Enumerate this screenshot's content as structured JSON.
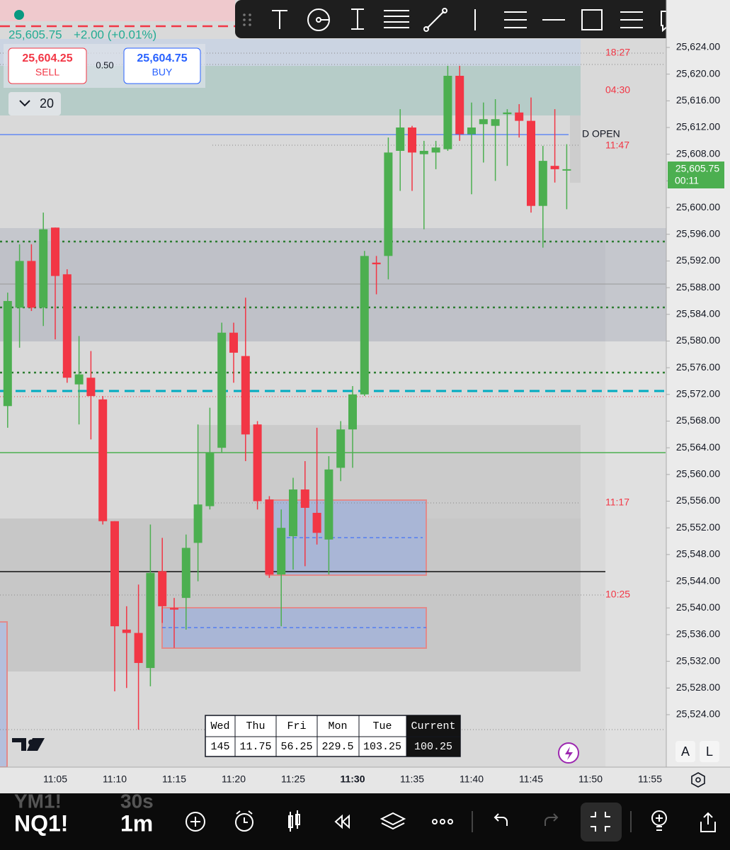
{
  "header": {
    "price": "25,605.75",
    "change": "+2.00 (+0.01%)",
    "sell_price": "25,604.25",
    "sell_label": "SELL",
    "spread": "0.50",
    "buy_price": "25,604.75",
    "buy_label": "BUY",
    "interval": "20"
  },
  "chart_data": {
    "type": "candlestick",
    "categories": [
      null,
      null,
      null,
      null,
      "11:05",
      null,
      null,
      null,
      null,
      "11:10",
      null,
      null,
      null,
      null,
      "11:15",
      null,
      null,
      null,
      null,
      "11:20",
      null,
      null,
      null,
      null,
      "11:25",
      null,
      null,
      null,
      null,
      "11:30",
      null,
      null,
      null,
      null,
      "11:35",
      null,
      null,
      null,
      null,
      "11:40",
      null,
      null,
      null,
      null,
      "11:45",
      null,
      null,
      null,
      null,
      "11:50",
      null,
      null,
      null,
      null,
      "11:55"
    ],
    "open": [
      25570.25,
      25585,
      25592,
      25585,
      25597,
      25590,
      25573.5,
      25574.5,
      25571.25,
      25553,
      25536.75,
      25536.25,
      25531,
      25545.5,
      25540,
      25541.5,
      25549.75,
      25555.25,
      25564,
      25581.25,
      25577.75,
      25567.5,
      25556.25,
      25545,
      25550.75,
      25557.75,
      25554.25,
      25550.25,
      25561,
      25566.75,
      25572,
      25591.75,
      25592.75,
      25608.5,
      25612,
      25608,
      25608.25,
      25608.75,
      25619.75,
      25611,
      25612.5,
      25612.25,
      25614,
      25614.25,
      25613,
      25600.25,
      25606.25,
      25605.75,
      null,
      null,
      null,
      null,
      null,
      null,
      null
    ],
    "high": [
      25587.25,
      25594.5,
      25594.5,
      25599.25,
      25597,
      25590.75,
      25580.75,
      25578.5,
      25571.75,
      25553,
      25540.25,
      25543.5,
      25552.5,
      25550.5,
      25541.5,
      25551,
      25567.5,
      25570,
      25582.75,
      25582.75,
      25586.5,
      25568,
      25556.75,
      25554.75,
      25559.5,
      25562,
      25567,
      25562.75,
      25568,
      25573.25,
      25593.5,
      25592.75,
      25610.5,
      25614.75,
      25612.25,
      25610,
      25610,
      25621.25,
      25621.25,
      25615.75,
      25615.75,
      25616.25,
      25614.75,
      25615.5,
      25616.5,
      25609.25,
      25614.75,
      25609.5,
      null,
      null,
      null,
      null,
      null,
      null,
      null
    ],
    "low": [
      25567,
      25579,
      25584.5,
      25582.25,
      25580.25,
      25573.75,
      25567.5,
      25565.25,
      25552.5,
      25527.5,
      25528,
      25521.75,
      25528.25,
      25537.75,
      25534,
      25536.75,
      25544,
      25554.75,
      25563.25,
      25573.75,
      25562,
      25554.75,
      25544.5,
      25537.25,
      25545.75,
      25546.25,
      25549.5,
      25545,
      25559,
      25561,
      25571.75,
      25587,
      25589.25,
      25602.5,
      25602.5,
      25596.75,
      25605.75,
      25608.5,
      25610,
      25602,
      25606.75,
      25604,
      25606.25,
      25610.5,
      25599.25,
      25594,
      25603.75,
      25599.75,
      null,
      null,
      null,
      null,
      null,
      null,
      null
    ],
    "close": [
      25586,
      25592,
      25585,
      25596.75,
      25589.75,
      25574.5,
      25575,
      25571.75,
      25553,
      25537.25,
      25536.25,
      25531.75,
      25545.25,
      25540.25,
      25539.75,
      25549,
      25555.5,
      25563.25,
      25581.25,
      25578.25,
      25566,
      25556,
      25545,
      25552,
      25557.75,
      25555,
      25551.25,
      25560.75,
      25566.75,
      25572,
      25592.75,
      25591.5,
      25608.25,
      25612,
      25608.25,
      25608.5,
      25609,
      25619.75,
      25611,
      25612,
      25613.25,
      25613.25,
      25614.25,
      25613,
      25600.25,
      25607,
      25605.75,
      25605.75,
      null,
      null,
      null,
      null,
      null,
      null,
      null
    ],
    "up_color": "#4caf50",
    "down_color": "#f23645",
    "ylim": [
      25516.14,
      25631.11
    ],
    "yticks": [
      {
        "value": 25524,
        "label": "25,524.00"
      },
      {
        "value": 25528,
        "label": "25,528.00"
      },
      {
        "value": 25532,
        "label": "25,532.00"
      },
      {
        "value": 25536,
        "label": "25,536.00"
      },
      {
        "value": 25540,
        "label": "25,540.00"
      },
      {
        "value": 25544,
        "label": "25,544.00"
      },
      {
        "value": 25548,
        "label": "25,548.00"
      },
      {
        "value": 25552,
        "label": "25,552.00"
      },
      {
        "value": 25556,
        "label": "25,556.00"
      },
      {
        "value": 25560,
        "label": "25,560.00"
      },
      {
        "value": 25564,
        "label": "25,564.00"
      },
      {
        "value": 25568,
        "label": "25,568.00"
      },
      {
        "value": 25572,
        "label": "25,572.00"
      },
      {
        "value": 25576,
        "label": "25,576.00"
      },
      {
        "value": 25580,
        "label": "25,580.00"
      },
      {
        "value": 25584,
        "label": "25,584.00"
      },
      {
        "value": 25588,
        "label": "25,588.00"
      },
      {
        "value": 25592,
        "label": "25,592.00"
      },
      {
        "value": 25596,
        "label": "25,596.00"
      },
      {
        "value": 25600,
        "label": "25,600.00"
      },
      {
        "value": 25604,
        "label": "25,604.00"
      },
      {
        "value": 25608,
        "label": "25,608.00"
      },
      {
        "value": 25612,
        "label": "25,612.00"
      },
      {
        "value": 25616,
        "label": "25,616.00"
      },
      {
        "value": 25620,
        "label": "25,620.00"
      },
      {
        "value": 25624,
        "label": "25,624.00"
      }
    ],
    "grid": false,
    "annotations": [
      "18:27",
      "04:30",
      "D OPEN",
      "11:47",
      "11:17",
      "10:25"
    ],
    "last_price": "25,605.75",
    "countdown": "00:11"
  },
  "table": {
    "header": [
      "Wed",
      "Thu",
      "Fri",
      "Mon",
      "Tue",
      "Current"
    ],
    "rows": [
      [
        "145",
        "11.75",
        "56.25",
        "229.5",
        "103.25",
        "100.25"
      ]
    ]
  },
  "side_buttons": [
    "A",
    "L"
  ],
  "bottom_bar": {
    "symbols": [
      "YM1!",
      "NQ1!"
    ],
    "intervals": [
      "30s",
      "1m"
    ]
  }
}
